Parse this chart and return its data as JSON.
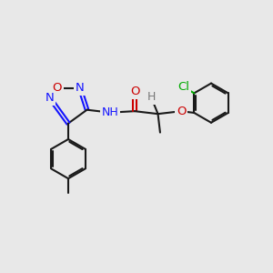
{
  "bg_color": "#e8e8e8",
  "bond_color": "#1a1a1a",
  "bond_width": 1.5,
  "dbo": 0.06,
  "atom_colors": {
    "C": "#1a1a1a",
    "N": "#1414ff",
    "O": "#cc0000",
    "Cl": "#00aa00",
    "H": "#777777"
  },
  "font_size": 9.5,
  "figsize": [
    3.0,
    3.0
  ],
  "dpi": 100,
  "xlim": [
    0,
    10
  ],
  "ylim": [
    0,
    10
  ]
}
